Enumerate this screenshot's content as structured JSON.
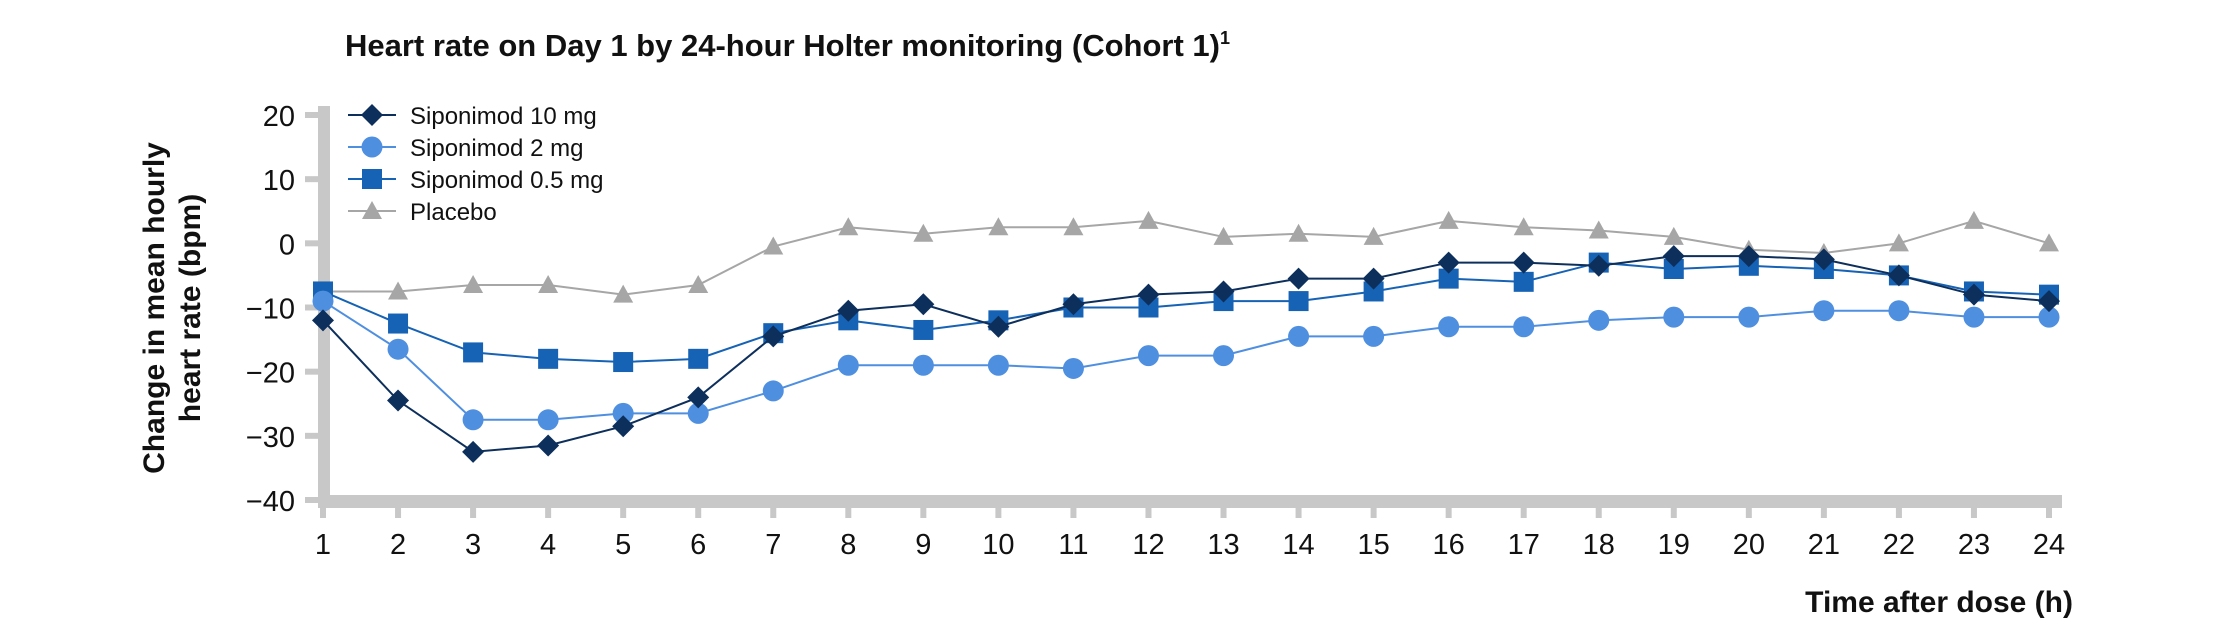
{
  "chart_data": {
    "type": "line",
    "title": "Heart rate on Day 1 by 24-hour Holter monitoring (Cohort 1)",
    "title_superscript": "1",
    "xlabel": "Time after dose (h)",
    "ylabel_lines": [
      "Change in mean hourly",
      "heart rate (bpm)"
    ],
    "x": [
      1,
      2,
      3,
      4,
      5,
      6,
      7,
      8,
      9,
      10,
      11,
      12,
      13,
      14,
      15,
      16,
      17,
      18,
      19,
      20,
      21,
      22,
      23,
      24
    ],
    "yticks": [
      20,
      10,
      0,
      -10,
      -20,
      -30,
      -40
    ],
    "ylim": [
      -40,
      20
    ],
    "xlim": [
      1,
      24
    ],
    "grid": false,
    "legend_position": "top-left",
    "series": [
      {
        "name": "Siponimod 10 mg",
        "color": "#0d2f5c",
        "marker": "diamond",
        "values": [
          -12,
          -24.5,
          -32.5,
          -31.5,
          -28.5,
          -24,
          -14.5,
          -10.5,
          -9.5,
          -13,
          -9.5,
          -8,
          -7.5,
          -5.5,
          -5.5,
          -3,
          -3,
          -3.5,
          -2,
          -2,
          -2.5,
          -5,
          -8,
          -9
        ]
      },
      {
        "name": "Siponimod 2 mg",
        "color": "#4f8fe0",
        "marker": "circle",
        "values": [
          -9,
          -16.5,
          -27.5,
          -27.5,
          -26.5,
          -26.5,
          -23,
          -19,
          -19,
          -19,
          -19.5,
          -17.5,
          -17.5,
          -14.5,
          -14.5,
          -13,
          -13,
          -12,
          -11.5,
          -11.5,
          -10.5,
          -10.5,
          -11.5,
          -11.5
        ]
      },
      {
        "name": "Siponimod 0.5 mg",
        "color": "#1662b4",
        "marker": "square",
        "values": [
          -7.5,
          -12.5,
          -17,
          -18,
          -18.5,
          -18,
          -14,
          -12,
          -13.5,
          -12,
          -10,
          -10,
          -9,
          -9,
          -7.5,
          -5.5,
          -6,
          -3,
          -4,
          -3.5,
          -4,
          -5,
          -7.5,
          -8
        ]
      },
      {
        "name": "Placebo",
        "color": "#a6a6a6",
        "marker": "triangle",
        "values": [
          -7.5,
          -7.5,
          -6.5,
          -6.5,
          -8,
          -6.5,
          -0.5,
          2.5,
          1.5,
          2.5,
          2.5,
          3.5,
          1,
          1.5,
          1,
          3.5,
          2.5,
          2,
          1,
          -1,
          -1.5,
          0,
          3.5,
          0
        ]
      }
    ]
  }
}
